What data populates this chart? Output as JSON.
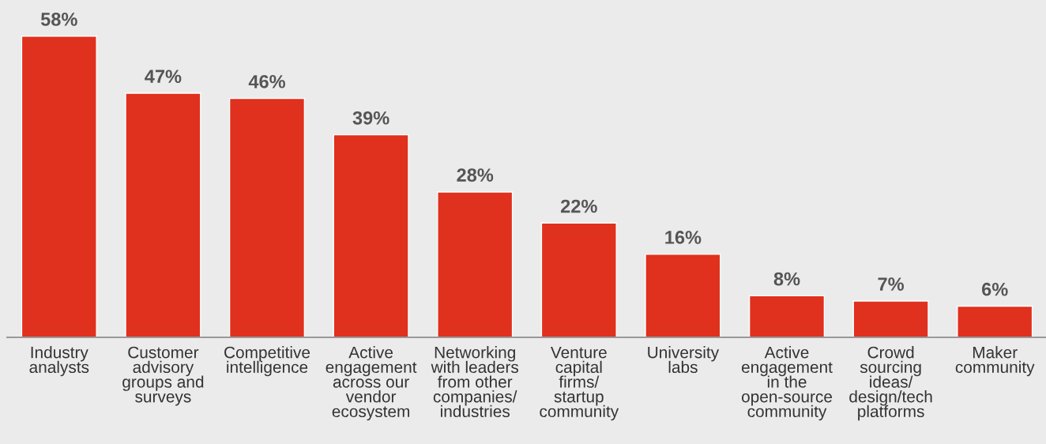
{
  "chart_data": {
    "type": "bar",
    "categories": [
      "Industry\nanalysts",
      "Customer\nadvisory\ngroups and\nsurveys",
      "Competitive\nintelligence",
      "Active\nengagement\nacross our\nvendor\necosystem",
      "Networking\nwith leaders\nfrom other\ncompanies/\nindustries",
      "Venture\ncapital\nfirms/\nstartup\ncommunity",
      "University\nlabs",
      "Active\nengagement\nin the\nopen-source\ncommunity",
      "Crowd\nsourcing\nideas/\ndesign/tech\nplatforms",
      "Maker\ncommunity"
    ],
    "values": [
      58,
      47,
      46,
      39,
      28,
      22,
      16,
      8,
      7,
      6
    ],
    "value_labels": [
      "58%",
      "47%",
      "46%",
      "39%",
      "28%",
      "22%",
      "16%",
      "8%",
      "7%",
      "6%"
    ],
    "color": "#e0301e",
    "grid": false,
    "legend": false,
    "tick_labels": "x"
  }
}
